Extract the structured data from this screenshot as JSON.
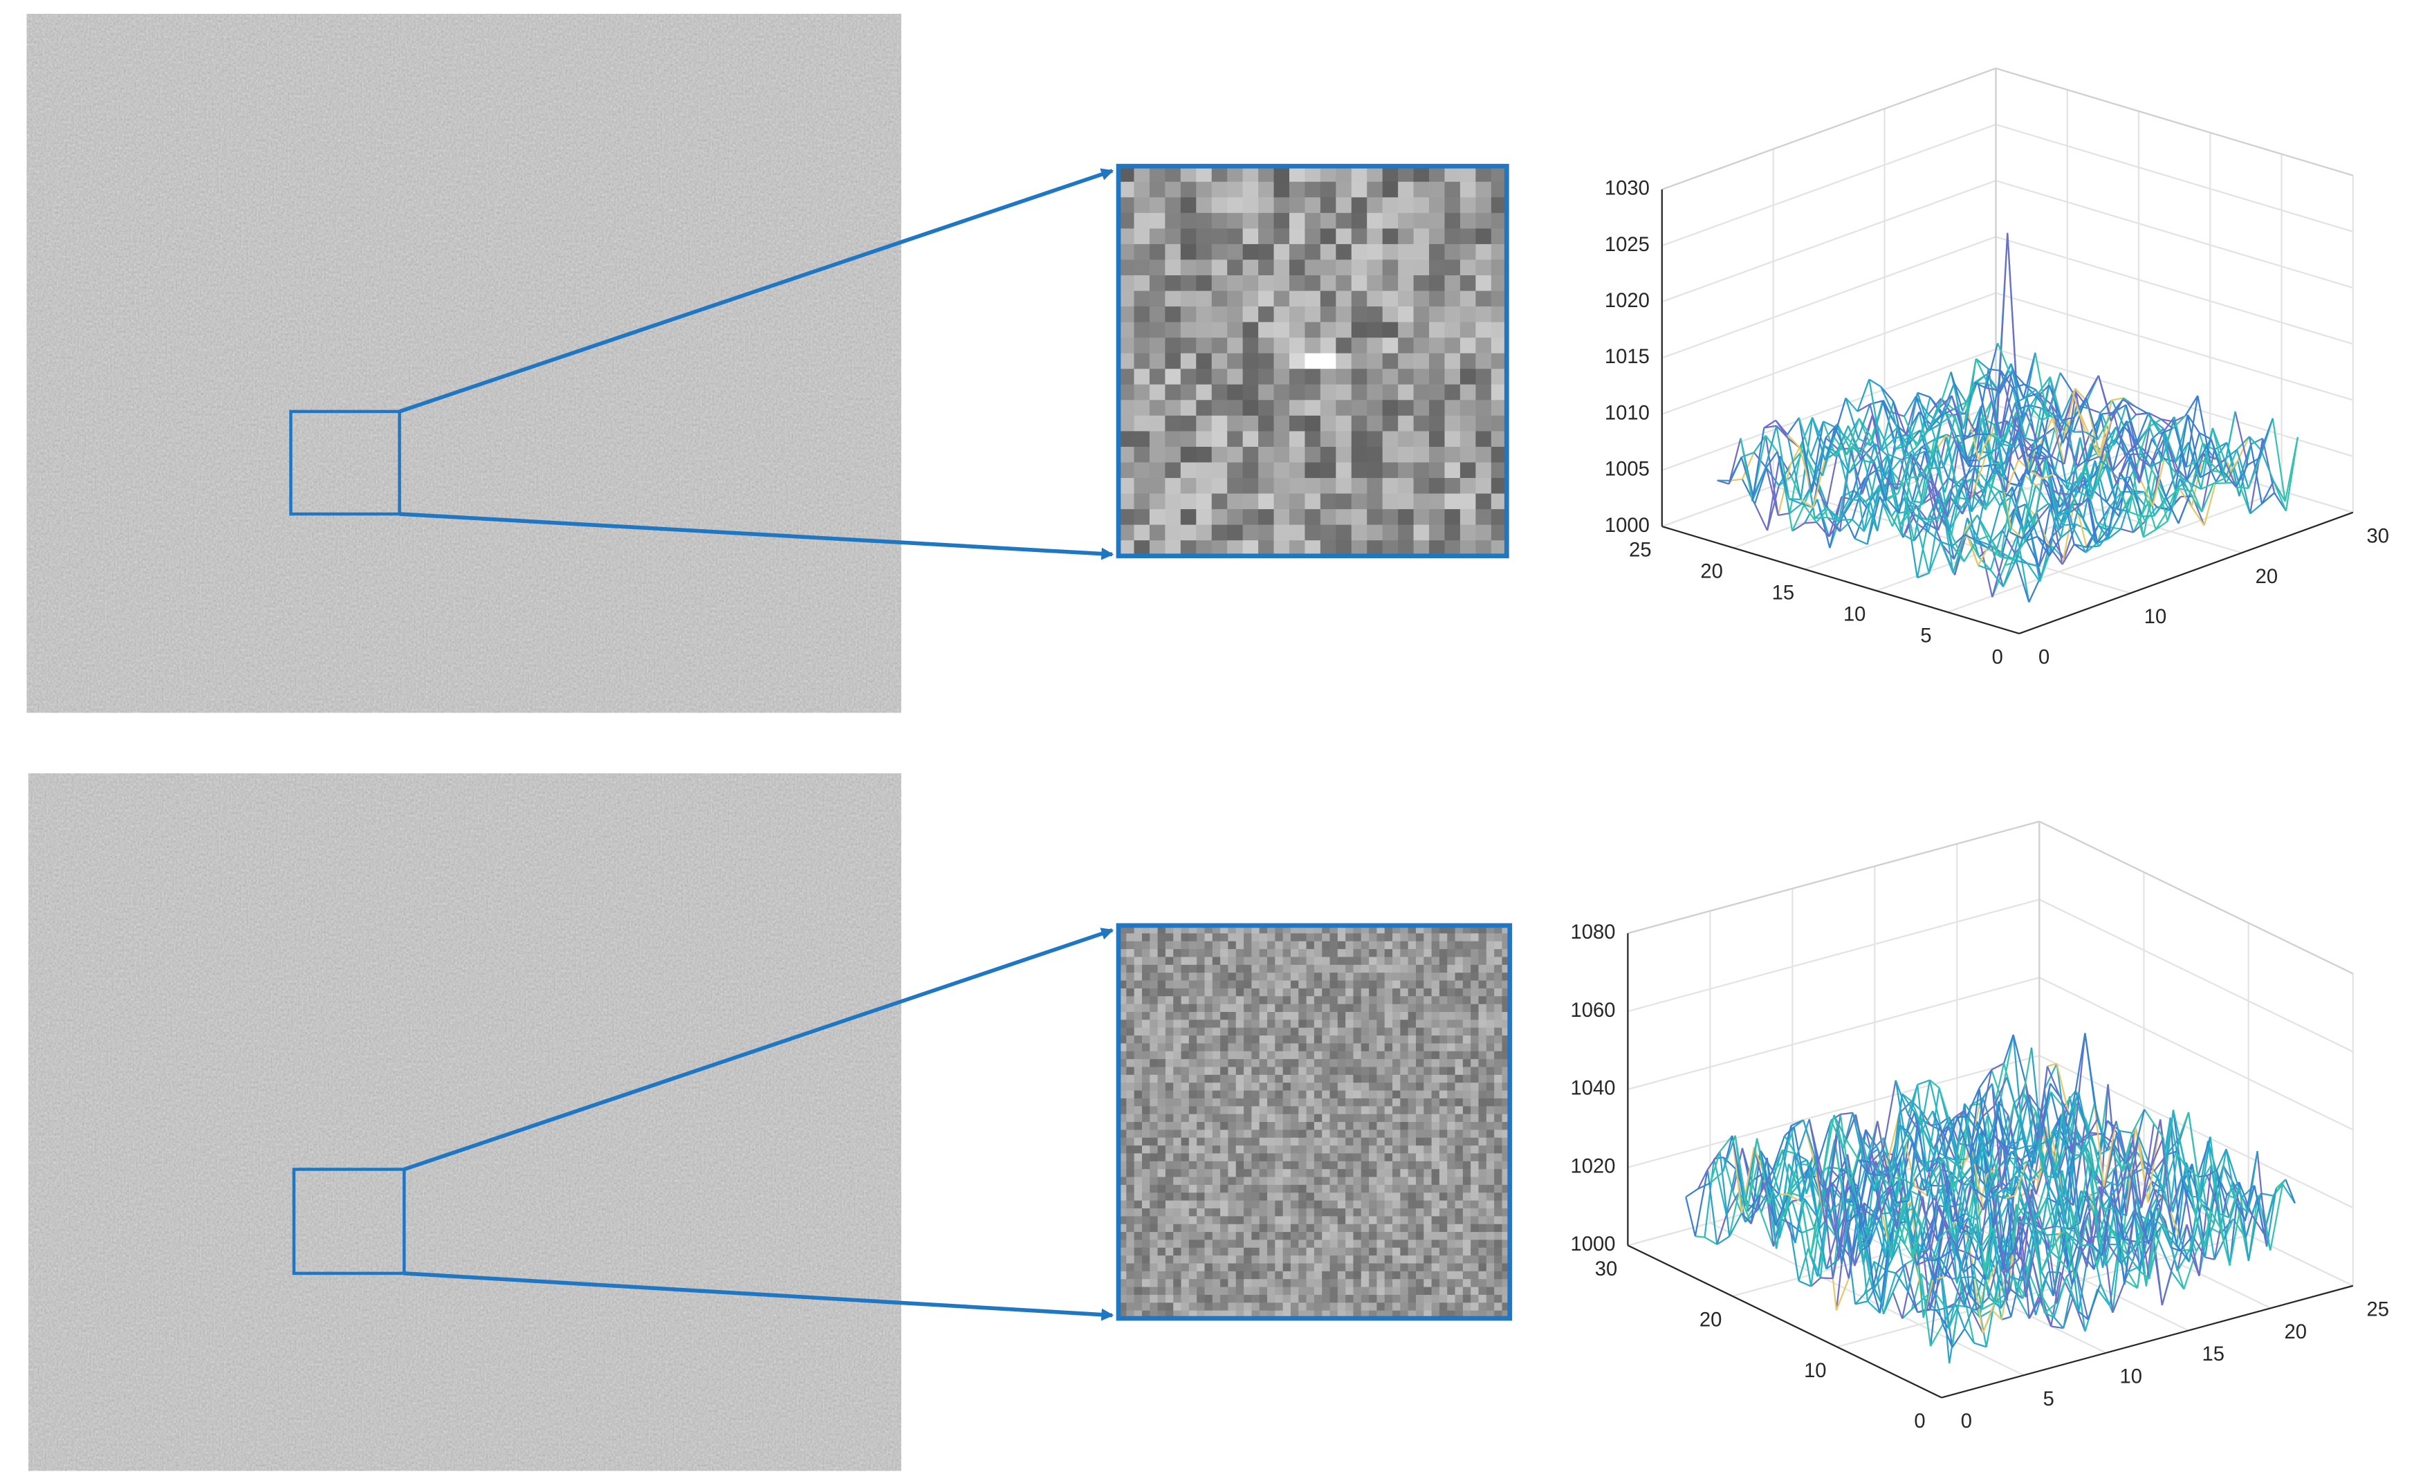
{
  "panels": [
    {
      "plot": {
        "z_ticks": [
          1000,
          1005,
          1010,
          1015,
          1020,
          1025,
          1030
        ],
        "left_ticks": [
          25,
          20,
          15,
          10,
          5,
          0
        ],
        "right_ticks": [
          0,
          10,
          20,
          30
        ]
      }
    },
    {
      "plot": {
        "z_ticks": [
          1000,
          1020,
          1040,
          1060,
          1080
        ],
        "left_ticks": [
          30,
          20,
          10,
          0
        ],
        "right_ticks": [
          0,
          5,
          10,
          15,
          20,
          25
        ]
      }
    }
  ]
}
